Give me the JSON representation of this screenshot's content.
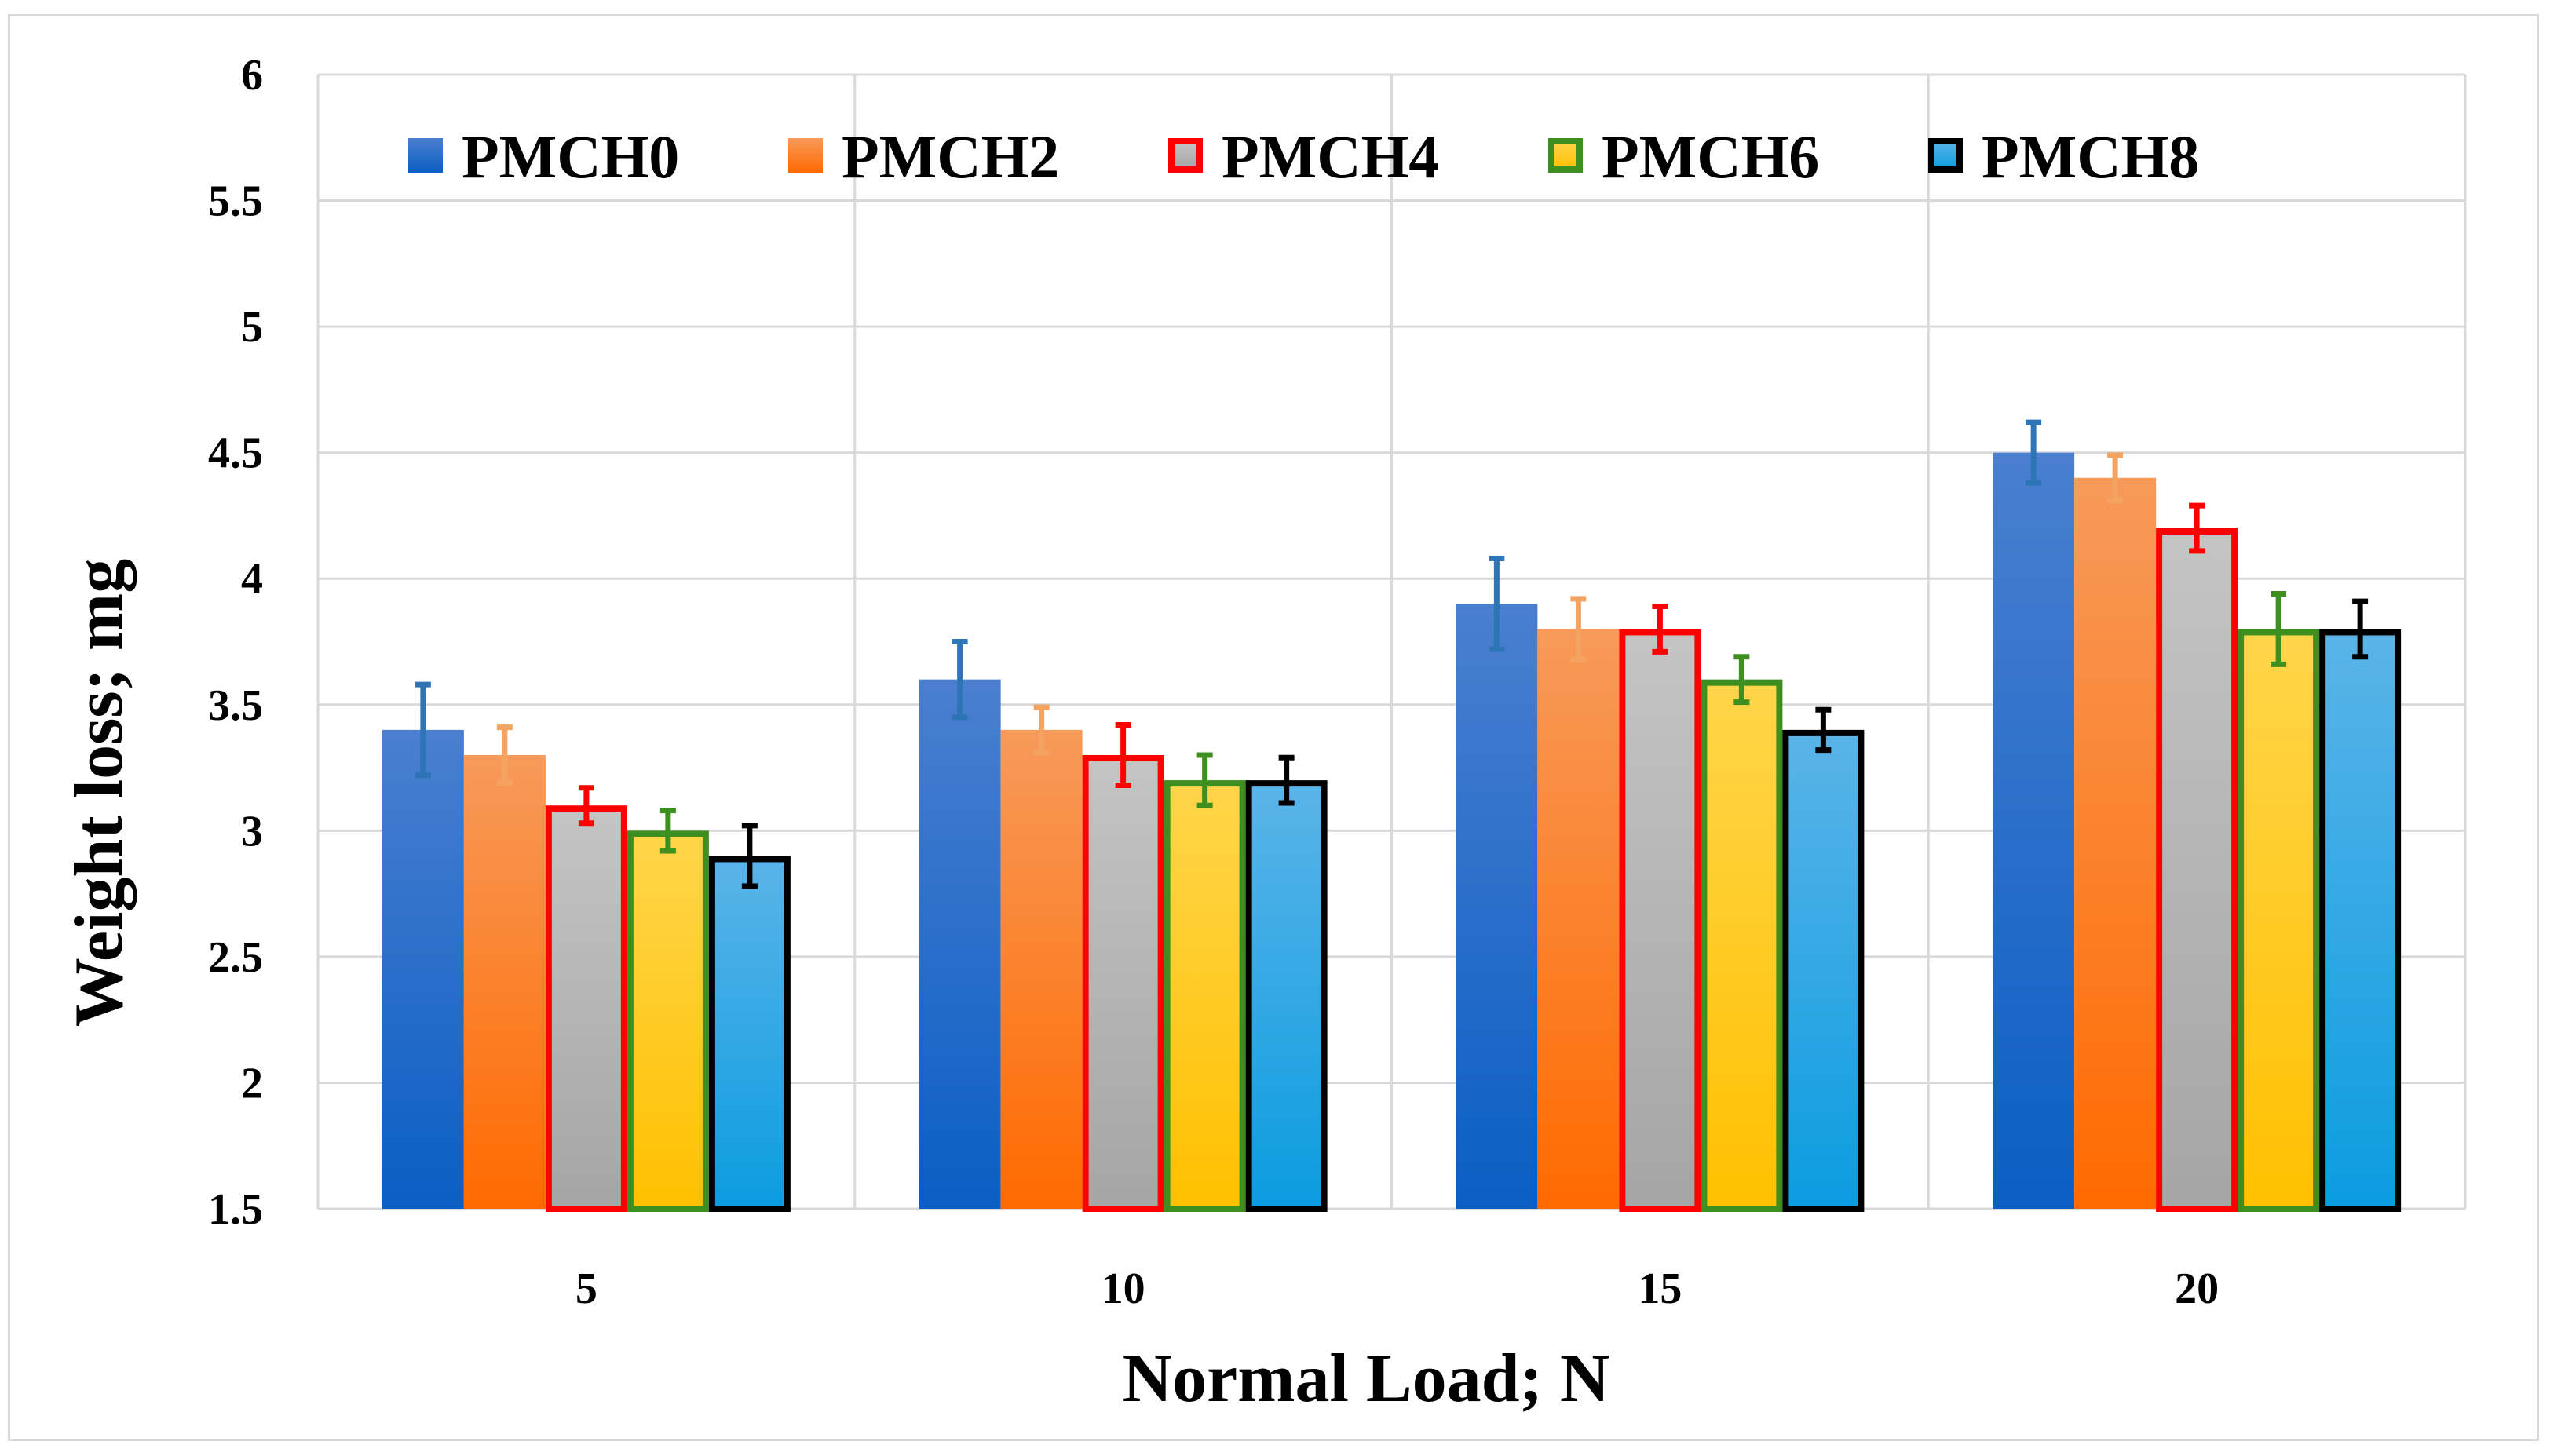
{
  "chart_data": {
    "type": "bar",
    "title": "",
    "xlabel": "Normal Load; N",
    "ylabel": "Weight loss; mg",
    "categories": [
      "5",
      "10",
      "15",
      "20"
    ],
    "ylim": [
      1.5,
      6
    ],
    "yticks": [
      "1.5",
      "2",
      "2.5",
      "3",
      "3.5",
      "4",
      "4.5",
      "5",
      "5.5",
      "6"
    ],
    "grid": true,
    "legend_position": "top",
    "series": [
      {
        "name": "PMCH0",
        "values": [
          3.4,
          3.6,
          3.9,
          4.5
        ],
        "errors": [
          0.18,
          0.15,
          0.18,
          0.12
        ],
        "fill_top": "#4a7fd0",
        "fill_bottom": "#0a5ec4",
        "border": "none",
        "error_color": "#2e75b6"
      },
      {
        "name": "PMCH2",
        "values": [
          3.3,
          3.4,
          3.8,
          4.4
        ],
        "errors": [
          0.11,
          0.09,
          0.12,
          0.09
        ],
        "fill_top": "#f79a5a",
        "fill_bottom": "#ff6a00",
        "border": "none",
        "error_color": "#f4a460"
      },
      {
        "name": "PMCH4",
        "values": [
          3.1,
          3.3,
          3.8,
          4.2
        ],
        "errors": [
          0.07,
          0.12,
          0.09,
          0.09
        ],
        "fill_top": "#c4c4c4",
        "fill_bottom": "#a5a5a5",
        "border": "#ff0000",
        "error_color": "#ff0000"
      },
      {
        "name": "PMCH6",
        "values": [
          3.0,
          3.2,
          3.6,
          3.8
        ],
        "errors": [
          0.08,
          0.1,
          0.09,
          0.14
        ],
        "fill_top": "#ffd54a",
        "fill_bottom": "#ffc000",
        "border": "#3d8f1f",
        "error_color": "#3d8f1f"
      },
      {
        "name": "PMCH8",
        "values": [
          2.9,
          3.2,
          3.4,
          3.8
        ],
        "errors": [
          0.12,
          0.09,
          0.08,
          0.11
        ],
        "fill_top": "#5ab4e8",
        "fill_bottom": "#0b9ce0",
        "border": "#000000",
        "error_color": "#000000"
      }
    ]
  }
}
